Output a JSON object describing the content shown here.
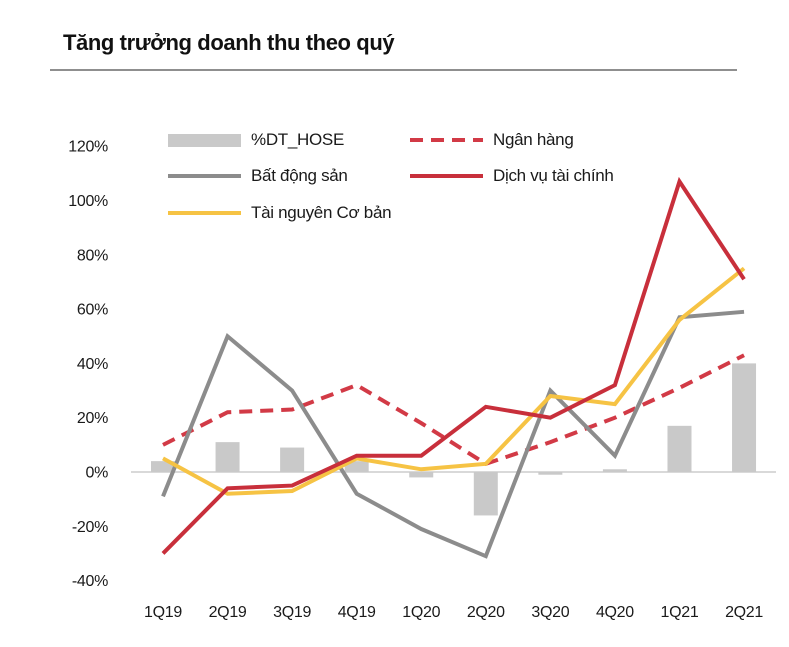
{
  "header": {
    "title": "Tăng trưởng doanh thu theo quý"
  },
  "colors": {
    "bar": "#C9C9C9",
    "bank_dashed_red": "#D23A46",
    "real_estate_gray": "#8C8C8C",
    "financial_services_red": "#C82F3B",
    "basic_resources_yellow": "#F6C344",
    "zero_gridline": "#D9D9D9",
    "divider": "#8F8F8F",
    "text": "#1A1A1A"
  },
  "chart_data": {
    "type": "combo-bar-line",
    "title": "Tăng trưởng doanh thu theo quý",
    "categories": [
      "1Q19",
      "2Q19",
      "3Q19",
      "4Q19",
      "1Q20",
      "2Q20",
      "3Q20",
      "4Q20",
      "1Q21",
      "2Q21"
    ],
    "series": [
      {
        "name": "%DT_HOSE",
        "type": "bar",
        "style": "solid",
        "color": "#C9C9C9",
        "values": [
          4,
          11,
          9,
          4,
          -2,
          -16,
          -1,
          1,
          17,
          40
        ]
      },
      {
        "name": "Ngân hàng",
        "type": "line",
        "style": "dashed",
        "color": "#D23A46",
        "values": [
          10,
          22,
          23,
          32,
          18,
          3,
          11,
          20,
          31,
          43
        ]
      },
      {
        "name": "Bất động sản",
        "type": "line",
        "style": "solid",
        "color": "#8C8C8C",
        "values": [
          -9,
          50,
          30,
          -8,
          -21,
          -31,
          30,
          6,
          57,
          59
        ]
      },
      {
        "name": "Dịch vụ tài chính",
        "type": "line",
        "style": "solid",
        "color": "#C82F3B",
        "values": [
          -30,
          -6,
          -5,
          6,
          6,
          24,
          20,
          32,
          107,
          71
        ]
      },
      {
        "name": "Tài nguyên Cơ bản",
        "type": "line",
        "style": "solid",
        "color": "#F6C344",
        "values": [
          5,
          -8,
          -7,
          5,
          1,
          3,
          28,
          25,
          56,
          75
        ]
      }
    ],
    "xlabel": "",
    "ylabel": "",
    "yticks": [
      120,
      100,
      80,
      60,
      40,
      20,
      0,
      -20,
      -40
    ],
    "ytick_suffix": "%",
    "ylim": [
      -40,
      120
    ],
    "grid": "zero-line-only",
    "legend_position": "top-left, two columns"
  }
}
